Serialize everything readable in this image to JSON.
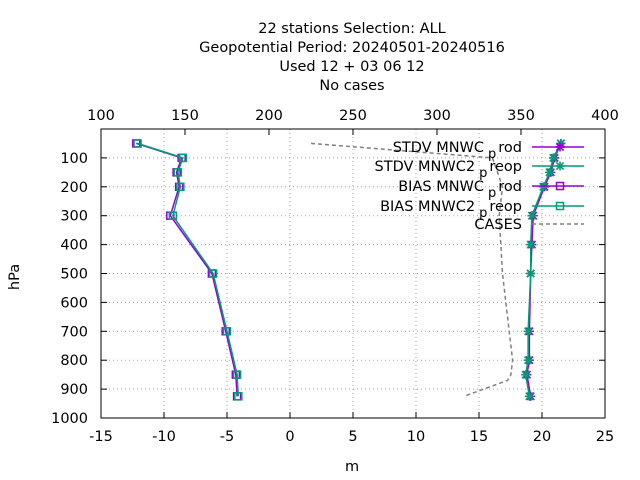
{
  "chart_data": {
    "type": "line",
    "title_lines": [
      "22 stations Selection: ALL",
      "Geopotential  Period: 20240501-20240516",
      "Used  12 + 03 06 12",
      "No cases"
    ],
    "xlabel": "m",
    "ylabel": "hPa",
    "xlim": [
      -15,
      25
    ],
    "ylim": [
      1000,
      0
    ],
    "x_ticks": [
      "-15",
      "-10",
      "-5",
      "0",
      "5",
      "10",
      "15",
      "20",
      "25"
    ],
    "y_ticks": [
      "100",
      "200",
      "300",
      "400",
      "500",
      "600",
      "700",
      "800",
      "900",
      "1000"
    ],
    "x2lim": [
      100,
      400
    ],
    "x2_ticks": [
      "100",
      "150",
      "200",
      "250",
      "300",
      "350",
      "400"
    ],
    "grid": true,
    "legend_position": "top-right",
    "series": [
      {
        "name": "STDV MNWC_prod",
        "color": "#9400d3",
        "marker": "star",
        "x": [
          21.5,
          21.0,
          20.7,
          20.2,
          19.3,
          19.2,
          19.1,
          19.0,
          19.0,
          18.8,
          19.1
        ],
        "y": [
          50,
          100,
          150,
          200,
          300,
          400,
          500,
          700,
          800,
          850,
          925
        ]
      },
      {
        "name": "STDV MNWC2_preop",
        "color": "#009e73",
        "marker": "star",
        "x": [
          21.5,
          20.9,
          20.6,
          20.1,
          19.2,
          19.1,
          19.1,
          18.9,
          18.9,
          18.7,
          19.0
        ],
        "y": [
          50,
          100,
          150,
          200,
          300,
          400,
          500,
          700,
          800,
          850,
          925
        ]
      },
      {
        "name": "BIAS MNWC_prod",
        "color": "#9400d3",
        "marker": "square",
        "x": [
          -12.2,
          -8.6,
          -9.0,
          -8.8,
          -9.5,
          -6.2,
          -5.1,
          -4.3,
          -4.2
        ],
        "y": [
          50,
          100,
          150,
          200,
          300,
          500,
          700,
          850,
          925
        ]
      },
      {
        "name": "BIAS MNWC2_preop",
        "color": "#009e73",
        "marker": "square",
        "x": [
          -12.1,
          -8.5,
          -8.9,
          -8.7,
          -9.3,
          -6.1,
          -5.0,
          -4.2,
          -4.1
        ],
        "y": [
          50,
          100,
          150,
          200,
          300,
          500,
          700,
          850,
          925
        ]
      },
      {
        "name": "CASES",
        "color": "#808080",
        "style": "dashed",
        "axis": "x2",
        "x": [
          225,
          333,
          336,
          339,
          338,
          337,
          339,
          343,
          345,
          344,
          342,
          316
        ],
        "y": [
          50,
          100,
          150,
          200,
          250,
          300,
          500,
          700,
          800,
          850,
          870,
          925
        ]
      }
    ],
    "legend_labels": [
      {
        "text": "STDV MNWC",
        "sub": "p",
        "rest": "rod"
      },
      {
        "text": "STDV MNWC2",
        "sub": "p",
        "rest": "reop"
      },
      {
        "text": "BIAS MNWC",
        "sub": "p",
        "rest": "rod"
      },
      {
        "text": "BIAS MNWC2",
        "sub": "p",
        "rest": "reop"
      },
      {
        "text": "CASES",
        "sub": "",
        "rest": ""
      }
    ]
  }
}
